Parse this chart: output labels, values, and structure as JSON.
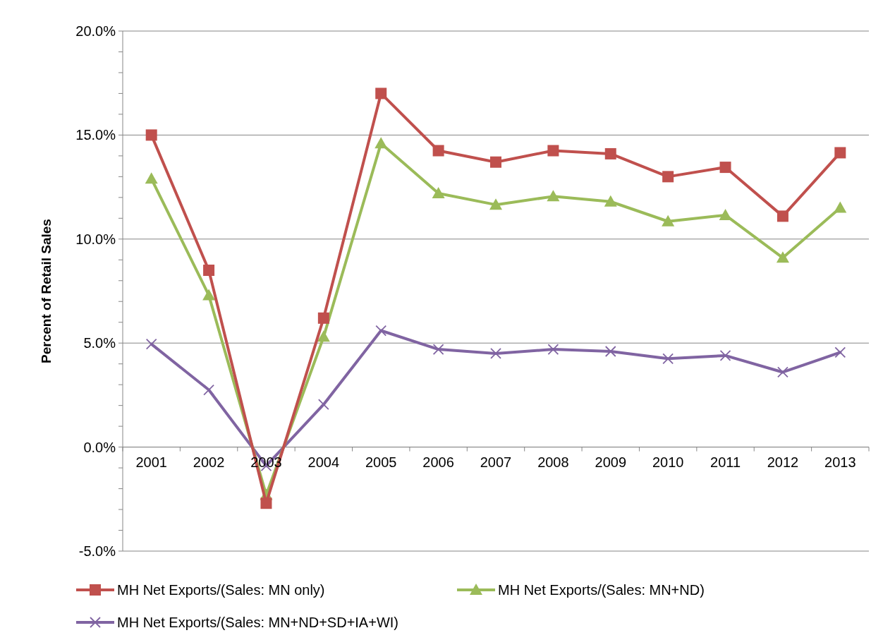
{
  "chart_data": {
    "type": "line",
    "ylabel": "Percent of Retail Sales",
    "categories": [
      "2001",
      "2002",
      "2003",
      "2004",
      "2005",
      "2006",
      "2007",
      "2008",
      "2009",
      "2010",
      "2011",
      "2012",
      "2013"
    ],
    "series": [
      {
        "name": "MH Net Exports/(Sales: MN only)",
        "color": "#c0504d",
        "marker": "square",
        "values": [
          15.0,
          8.5,
          -2.7,
          6.2,
          17.0,
          14.25,
          13.7,
          14.25,
          14.1,
          13.0,
          13.45,
          11.1,
          14.15
        ]
      },
      {
        "name": "MH Net Exports/(Sales: MN+ND)",
        "color": "#9bbb59",
        "marker": "triangle",
        "values": [
          12.9,
          7.3,
          -2.3,
          5.3,
          14.6,
          12.2,
          11.65,
          12.05,
          11.8,
          10.85,
          11.15,
          9.1,
          11.5
        ]
      },
      {
        "name": "MH Net Exports/(Sales: MN+ND+SD+IA+WI)",
        "color": "#8064a2",
        "marker": "cross",
        "values": [
          4.95,
          2.75,
          -0.9,
          2.05,
          5.6,
          4.7,
          4.5,
          4.7,
          4.6,
          4.25,
          4.4,
          3.6,
          4.55
        ]
      }
    ],
    "ylim": [
      -5,
      20
    ],
    "yticks": [
      {
        "value": -5,
        "label": "-5.0%"
      },
      {
        "value": -4,
        "label": null
      },
      {
        "value": -3,
        "label": null
      },
      {
        "value": -2,
        "label": null
      },
      {
        "value": -1,
        "label": null
      },
      {
        "value": 0,
        "label": "0.0%"
      },
      {
        "value": 1,
        "label": null
      },
      {
        "value": 2,
        "label": null
      },
      {
        "value": 3,
        "label": null
      },
      {
        "value": 4,
        "label": null
      },
      {
        "value": 5,
        "label": "5.0%"
      },
      {
        "value": 6,
        "label": null
      },
      {
        "value": 7,
        "label": null
      },
      {
        "value": 8,
        "label": null
      },
      {
        "value": 9,
        "label": null
      },
      {
        "value": 10,
        "label": "10.0%"
      },
      {
        "value": 11,
        "label": null
      },
      {
        "value": 12,
        "label": null
      },
      {
        "value": 13,
        "label": null
      },
      {
        "value": 14,
        "label": null
      },
      {
        "value": 15,
        "label": "15.0%"
      },
      {
        "value": 16,
        "label": null
      },
      {
        "value": 17,
        "label": null
      },
      {
        "value": 18,
        "label": null
      },
      {
        "value": 19,
        "label": null
      },
      {
        "value": 20,
        "label": "20.0%"
      }
    ],
    "grid": "y",
    "legend": "bottom",
    "line_style": "solid"
  }
}
